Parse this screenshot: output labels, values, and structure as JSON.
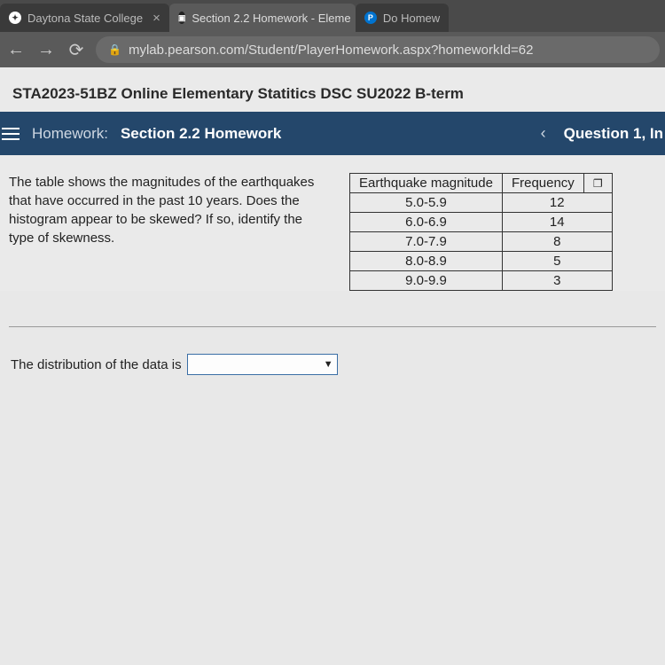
{
  "tabs": [
    {
      "favicon": "D",
      "favStyle": "plain",
      "label": "Daytona State College",
      "active": false
    },
    {
      "favicon": "P",
      "favStyle": "dark",
      "label": "Section 2.2 Homework - Eleme",
      "active": true
    },
    {
      "favicon": "P",
      "favStyle": "blue",
      "label": "Do Homew",
      "active": false
    }
  ],
  "url": "mylab.pearson.com/Student/PlayerHomework.aspx?homeworkId=62",
  "course_title": "STA2023-51BZ Online Elementary Statitics DSC SU2022 B-term",
  "hw": {
    "label": "Homework:",
    "name": "Section 2.2 Homework",
    "question": "Question 1, In"
  },
  "prompt": "The table shows the magnitudes of the earthquakes that have occurred in the past 10 years. Does the histogram appear to be skewed? If so, identify the type of skewness.",
  "table": {
    "headers": [
      "Earthquake magnitude",
      "Frequency"
    ],
    "rows": [
      [
        "5.0-5.9",
        "12"
      ],
      [
        "6.0-6.9",
        "14"
      ],
      [
        "7.0-7.9",
        "8"
      ],
      [
        "8.0-8.9",
        "5"
      ],
      [
        "9.0-9.9",
        "3"
      ]
    ]
  },
  "answer_prefix": "The distribution of the data is",
  "colors": {
    "header_bg": "#24476b",
    "page_bg": "#eaeaea",
    "dropdown_border": "#3a6ea5"
  }
}
